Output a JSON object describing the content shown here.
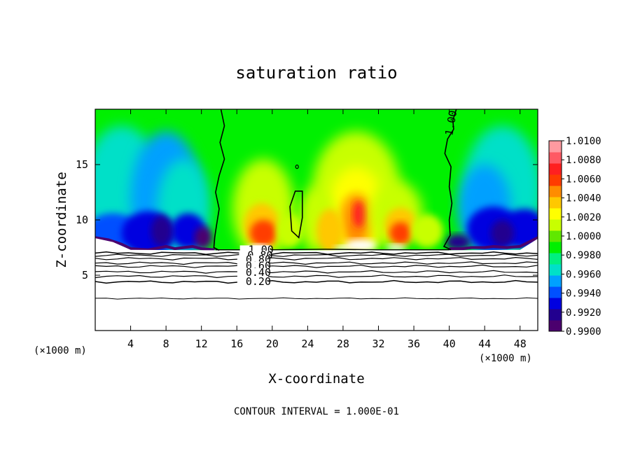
{
  "chart_data": {
    "type": "heatmap",
    "title": "saturation ratio",
    "xlabel": "X-coordinate",
    "ylabel": "Z-coordinate",
    "x_unit_label": "(×1000 m)",
    "x_unit_label_right": "(×1000 m)",
    "xlim": [
      0,
      50
    ],
    "ylim": [
      0,
      20
    ],
    "x_ticks": [
      "4",
      "8",
      "12",
      "16",
      "20",
      "24",
      "28",
      "32",
      "36",
      "40",
      "44",
      "48"
    ],
    "y_ticks": [
      "5",
      "10",
      "15"
    ],
    "colorbar": {
      "range": [
        0.99,
        1.01
      ],
      "tick_labels": [
        "1.0100",
        "1.0080",
        "1.0060",
        "1.0040",
        "1.0020",
        "1.0000",
        "0.9980",
        "0.9960",
        "0.9940",
        "0.9920",
        "0.9900"
      ],
      "colors": [
        "#4b006e",
        "#22008f",
        "#0000e0",
        "#0050ff",
        "#00a0ff",
        "#00e0c8",
        "#00f080",
        "#00f000",
        "#60e800",
        "#c8ff00",
        "#ffff00",
        "#ffc800",
        "#ff8c00",
        "#ff3c00",
        "#ff2020",
        "#ff5a64",
        "#ff9aa0"
      ]
    },
    "contour_labels": [
      "1.00",
      "1.00",
      "1.00",
      "0.80",
      "0.60",
      "0.40",
      "0.20"
    ],
    "footer": "CONTOUR INTERVAL = 1.000E-01",
    "grid": false
  }
}
